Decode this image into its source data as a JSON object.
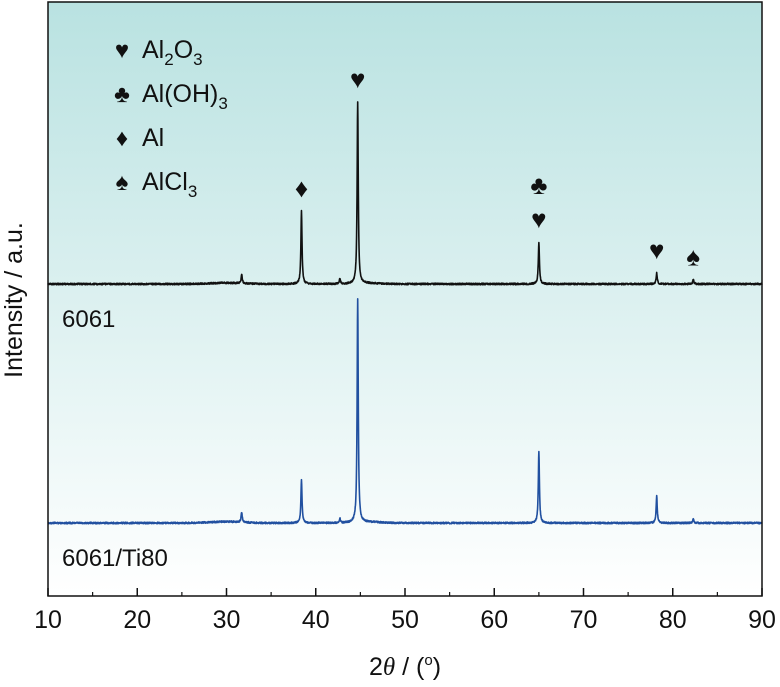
{
  "chart_data": {
    "type": "line",
    "xlabel_prefix": "2",
    "xlabel_symbol": "θ",
    "xlabel_unit": " / (",
    "xlabel_degree": "o",
    "xlabel_close": ")",
    "ylabel": "Intensity / a.u.",
    "xlim": [
      10,
      90
    ],
    "x_ticks": [
      10,
      20,
      30,
      40,
      50,
      60,
      70,
      80,
      90
    ],
    "y_ticks": false,
    "grid": false,
    "background_gradient": [
      "#b9e2e1",
      "#ffffff"
    ],
    "legend": {
      "placement": "top-left",
      "entries": [
        {
          "symbol": "♥",
          "base": "Al",
          "sub1": "2",
          "mid": "O",
          "sub2": "3"
        },
        {
          "symbol": "♣",
          "base": "Al(OH)",
          "sub1": "3",
          "mid": "",
          "sub2": ""
        },
        {
          "symbol": "♦",
          "base": "Al",
          "sub1": "",
          "mid": "",
          "sub2": ""
        },
        {
          "symbol": "♠",
          "base": "AlCl",
          "sub1": "3",
          "mid": "",
          "sub2": ""
        }
      ]
    },
    "series": [
      {
        "name": "6061",
        "color": "#111111",
        "peaks": [
          {
            "x": 31.7,
            "h": 0.05
          },
          {
            "x": 38.4,
            "h": 0.4
          },
          {
            "x": 42.7,
            "h": 0.03
          },
          {
            "x": 44.7,
            "h": 1.0
          },
          {
            "x": 65.0,
            "h": 0.23
          },
          {
            "x": 78.2,
            "h": 0.06
          },
          {
            "x": 82.3,
            "h": 0.025
          }
        ],
        "annotations": [
          {
            "x": 38.4,
            "symbols": [
              "♦"
            ]
          },
          {
            "x": 44.7,
            "symbols": [
              "♥"
            ]
          },
          {
            "x": 65.0,
            "symbols": [
              "♣",
              "♥"
            ]
          },
          {
            "x": 78.2,
            "symbols": [
              "♥"
            ]
          },
          {
            "x": 82.3,
            "symbols": [
              "♠"
            ]
          }
        ]
      },
      {
        "name": "6061/Ti80",
        "color": "#2150a0",
        "peaks": [
          {
            "x": 31.7,
            "h": 0.045
          },
          {
            "x": 38.4,
            "h": 0.19
          },
          {
            "x": 42.7,
            "h": 0.02
          },
          {
            "x": 44.7,
            "h": 1.0
          },
          {
            "x": 65.0,
            "h": 0.32
          },
          {
            "x": 78.2,
            "h": 0.12
          },
          {
            "x": 82.3,
            "h": 0.02
          }
        ],
        "annotations": []
      }
    ]
  }
}
